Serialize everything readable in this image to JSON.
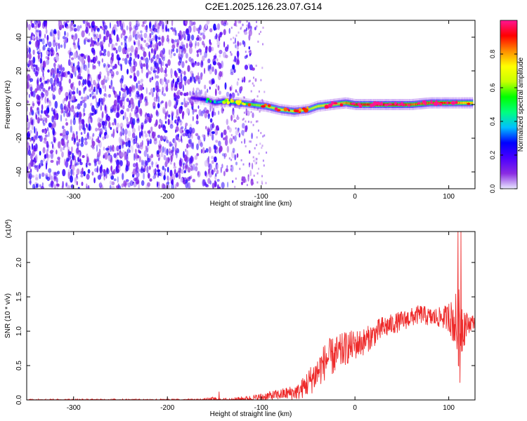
{
  "title": "C2E1.2025.126.23.07.G14",
  "colors": {
    "snr_line": "#ee2a2a",
    "colorbar_stops": [
      "#e8e8ff",
      "#8a2be2",
      "#4b00ff",
      "#0000ff",
      "#00bfff",
      "#00ff7f",
      "#00ff00",
      "#c8ff00",
      "#ffff00",
      "#ff8c00",
      "#ff0000",
      "#ff1493"
    ]
  },
  "chart_data": [
    {
      "type": "heatmap",
      "xlabel": "Height of straight line (km)",
      "ylabel": "Frequency (Hz)",
      "xlim": [
        -350,
        128
      ],
      "ylim": [
        -50,
        50
      ],
      "xticks": [
        -300,
        -200,
        -100,
        0,
        100
      ],
      "yticks": [
        -40,
        -20,
        0,
        20,
        40
      ],
      "colorbar": {
        "label": "Normalized spectral amplitude",
        "range": [
          0,
          1
        ],
        "ticks": [
          "0.0",
          "0.2",
          "0.4",
          "0.6",
          "0.8"
        ]
      },
      "noise_region": {
        "x": [
          -350,
          -105
        ],
        "y": [
          -50,
          50
        ],
        "amplitude": [
          0.02,
          0.25
        ]
      },
      "signal_ridge": [
        {
          "x": -175,
          "y": 4,
          "a": 0.15
        },
        {
          "x": -160,
          "y": 3,
          "a": 0.25
        },
        {
          "x": -150,
          "y": 1,
          "a": 0.3
        },
        {
          "x": -140,
          "y": 2,
          "a": 0.45
        },
        {
          "x": -125,
          "y": 1,
          "a": 0.5
        },
        {
          "x": -110,
          "y": 0,
          "a": 0.6
        },
        {
          "x": -95,
          "y": -1,
          "a": 0.65
        },
        {
          "x": -80,
          "y": -3,
          "a": 0.7
        },
        {
          "x": -65,
          "y": -4,
          "a": 0.7
        },
        {
          "x": -50,
          "y": -3,
          "a": 0.65
        },
        {
          "x": -40,
          "y": -1,
          "a": 0.7
        },
        {
          "x": -25,
          "y": 0,
          "a": 0.75
        },
        {
          "x": -10,
          "y": 1,
          "a": 0.8
        },
        {
          "x": 0,
          "y": 0,
          "a": 0.9
        },
        {
          "x": 20,
          "y": 0,
          "a": 0.95
        },
        {
          "x": 40,
          "y": 0,
          "a": 0.9
        },
        {
          "x": 60,
          "y": 0,
          "a": 0.85
        },
        {
          "x": 80,
          "y": 1,
          "a": 0.85
        },
        {
          "x": 95,
          "y": 1,
          "a": 0.9
        },
        {
          "x": 110,
          "y": 1,
          "a": 0.8
        },
        {
          "x": 125,
          "y": 1,
          "a": 0.75
        }
      ]
    },
    {
      "type": "line",
      "xlabel": "Height of straight line (km)",
      "ylabel": "SNR (10 * v/v)",
      "yscale_label": "(x10",
      "yscale_exponent": "4",
      "xlim": [
        -350,
        128
      ],
      "ylim": [
        0,
        24500
      ],
      "xticks": [
        -300,
        -200,
        -100,
        0,
        100
      ],
      "yticks": [
        "0.0",
        "0.5",
        "1.0",
        "1.5",
        "2.0"
      ],
      "ytick_values": [
        0,
        5000,
        10000,
        15000,
        20000
      ],
      "envelope": {
        "x": [
          -350,
          -200,
          -160,
          -150,
          -145,
          -130,
          -110,
          -100,
          -80,
          -60,
          -50,
          -40,
          -30,
          -20,
          -10,
          0,
          10,
          20,
          30,
          40,
          50,
          60,
          70,
          80,
          90,
          100,
          105,
          110,
          115,
          120,
          128
        ],
        "mean": [
          0,
          0,
          0,
          100,
          0,
          50,
          200,
          400,
          800,
          1200,
          2500,
          4000,
          6000,
          6500,
          7500,
          8000,
          8500,
          9500,
          10500,
          11000,
          11500,
          12000,
          12500,
          12000,
          12000,
          12000,
          11500,
          10500,
          11000,
          11000,
          11500
        ],
        "spread": [
          150,
          150,
          200,
          400,
          200,
          300,
          500,
          600,
          800,
          1200,
          2000,
          2500,
          2800,
          2800,
          2500,
          2200,
          2000,
          1800,
          1800,
          1500,
          1500,
          1400,
          1400,
          1400,
          1500,
          2000,
          3500,
          6000,
          4000,
          1500,
          1000
        ]
      },
      "peaks": [
        {
          "x": -145,
          "y": 1200
        },
        {
          "x": 110,
          "y": 24500
        },
        {
          "x": 113,
          "y": 24500
        },
        {
          "x": 112,
          "y": 2500
        },
        {
          "x": 100,
          "y": 14000
        }
      ]
    }
  ]
}
